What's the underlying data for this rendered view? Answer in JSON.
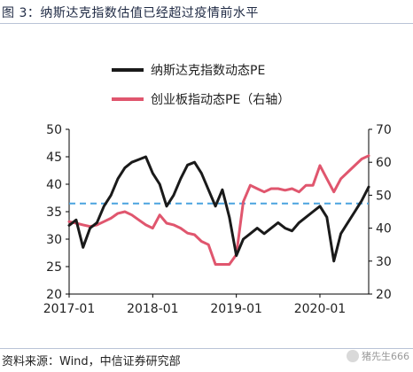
{
  "figure_title": "图 3：纳斯达克指数估值已经超过疫情前水平",
  "source_note": "资料来源：Wind，中信证券研究部",
  "watermark": "猪先生666",
  "chart_data": {
    "type": "line",
    "x_ticks": [
      "2017-01",
      "2018-01",
      "2019-01",
      "2020-01"
    ],
    "x_range": [
      "2017-01",
      "2020-08"
    ],
    "y_left": {
      "ticks": [
        20,
        25,
        30,
        35,
        40,
        45,
        50
      ],
      "range": [
        20,
        50
      ]
    },
    "y_right": {
      "ticks": [
        20,
        30,
        40,
        50,
        60,
        70
      ],
      "range": [
        20,
        70
      ]
    },
    "reference_line": {
      "axis": "left",
      "value": 36.5,
      "style": "dashed",
      "color": "#4aa3df"
    },
    "legend_position": "top-center",
    "series": [
      {
        "name": "纳斯达克指数动态PE",
        "axis": "left",
        "color": "#1a1a1a",
        "x": [
          "2017-01",
          "2017-02",
          "2017-03",
          "2017-04",
          "2017-05",
          "2017-06",
          "2017-07",
          "2017-08",
          "2017-09",
          "2017-10",
          "2017-11",
          "2017-12",
          "2018-01",
          "2018-02",
          "2018-03",
          "2018-04",
          "2018-05",
          "2018-06",
          "2018-07",
          "2018-08",
          "2018-09",
          "2018-10",
          "2018-11",
          "2018-12",
          "2019-01",
          "2019-02",
          "2019-03",
          "2019-04",
          "2019-05",
          "2019-06",
          "2019-07",
          "2019-08",
          "2019-09",
          "2019-10",
          "2019-11",
          "2019-12",
          "2020-01",
          "2020-02",
          "2020-03",
          "2020-04",
          "2020-05",
          "2020-06",
          "2020-07",
          "2020-08"
        ],
        "values": [
          32.5,
          33.5,
          28.5,
          32,
          33,
          36,
          38,
          41,
          43,
          44,
          44.5,
          45,
          42,
          40,
          36,
          38,
          41,
          43.5,
          44,
          42,
          39,
          36,
          39,
          34,
          27,
          30,
          31,
          32,
          31,
          32,
          33,
          32,
          31.5,
          33,
          34,
          35,
          36,
          34,
          26,
          31,
          33,
          35,
          37,
          39.5
        ]
      },
      {
        "name": "创业板指动态PE（右轴）",
        "axis": "right",
        "color": "#e0566e",
        "x": [
          "2017-01",
          "2017-02",
          "2017-03",
          "2017-04",
          "2017-05",
          "2017-06",
          "2017-07",
          "2017-08",
          "2017-09",
          "2017-10",
          "2017-11",
          "2017-12",
          "2018-01",
          "2018-02",
          "2018-03",
          "2018-04",
          "2018-05",
          "2018-06",
          "2018-07",
          "2018-08",
          "2018-09",
          "2018-10",
          "2018-11",
          "2018-12",
          "2019-01",
          "2019-02",
          "2019-03",
          "2019-04",
          "2019-05",
          "2019-06",
          "2019-07",
          "2019-08",
          "2019-09",
          "2019-10",
          "2019-11",
          "2019-12",
          "2020-01",
          "2020-02",
          "2020-03",
          "2020-04",
          "2020-05",
          "2020-06",
          "2020-07",
          "2020-08"
        ],
        "values": [
          42,
          41.5,
          41,
          40.5,
          41,
          42,
          43,
          44.5,
          45,
          44,
          42.5,
          41,
          40,
          44,
          41.5,
          41,
          40,
          38.5,
          38,
          36,
          35,
          29,
          29,
          29,
          32,
          48,
          53,
          52,
          51,
          52,
          52,
          51.5,
          52,
          51,
          53,
          53,
          59,
          55,
          51,
          55,
          57,
          59,
          61,
          62
        ]
      }
    ]
  }
}
